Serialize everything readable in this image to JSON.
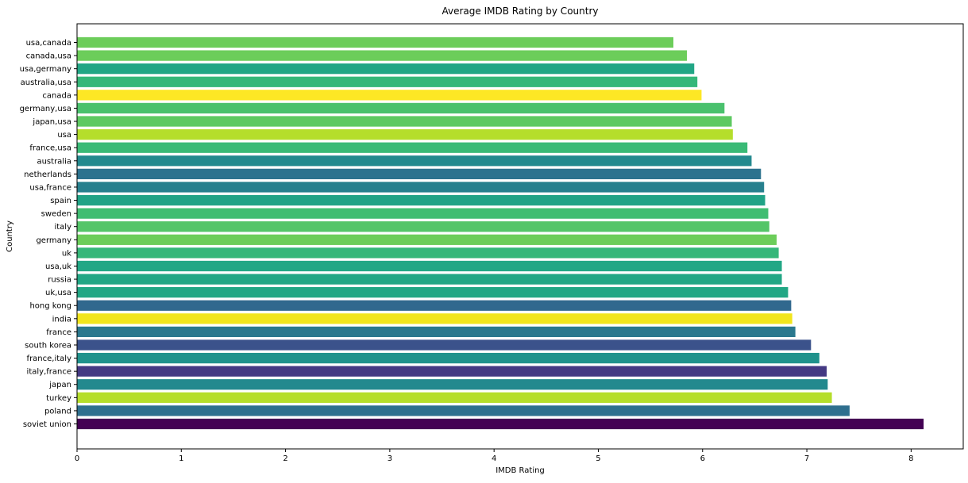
{
  "chart_data": {
    "type": "bar",
    "orientation": "horizontal",
    "title": "Average IMDB Rating by Country",
    "xlabel": "IMDB Rating",
    "ylabel": "Country",
    "xlim": [
      0,
      8.5
    ],
    "x_ticks": [
      0,
      1,
      2,
      3,
      4,
      5,
      6,
      7,
      8
    ],
    "grid": false,
    "categories": [
      "usa,canada",
      "canada,usa",
      "usa,germany",
      "australia,usa",
      "canada",
      "germany,usa",
      "japan,usa",
      "usa",
      "france,usa",
      "australia",
      "netherlands",
      "usa,france",
      "spain",
      "sweden",
      "italy",
      "germany",
      "uk",
      "usa,uk",
      "russia",
      "uk,usa",
      "hong kong",
      "india",
      "france",
      "south korea",
      "france,italy",
      "italy,france",
      "japan",
      "turkey",
      "poland",
      "soviet union"
    ],
    "values": [
      5.72,
      5.85,
      5.92,
      5.95,
      5.99,
      6.21,
      6.28,
      6.29,
      6.43,
      6.47,
      6.56,
      6.59,
      6.6,
      6.63,
      6.64,
      6.71,
      6.73,
      6.76,
      6.76,
      6.82,
      6.85,
      6.86,
      6.89,
      7.04,
      7.12,
      7.19,
      7.2,
      7.24,
      7.41,
      8.12
    ],
    "colors": [
      "#6ccd5a",
      "#6ccd5a",
      "#21a685",
      "#35b779",
      "#fde725",
      "#4ac16d",
      "#5ec962",
      "#b5de2b",
      "#3aba76",
      "#23898e",
      "#2c728e",
      "#27808e",
      "#20a386",
      "#40bd72",
      "#54c568",
      "#6ccd5a",
      "#35b779",
      "#22a785",
      "#22a785",
      "#22a785",
      "#31688e",
      "#f1e51d",
      "#2a788e",
      "#3b528b",
      "#20928c",
      "#443983",
      "#23898e",
      "#b5de2b",
      "#2e6f8e",
      "#440154"
    ]
  }
}
